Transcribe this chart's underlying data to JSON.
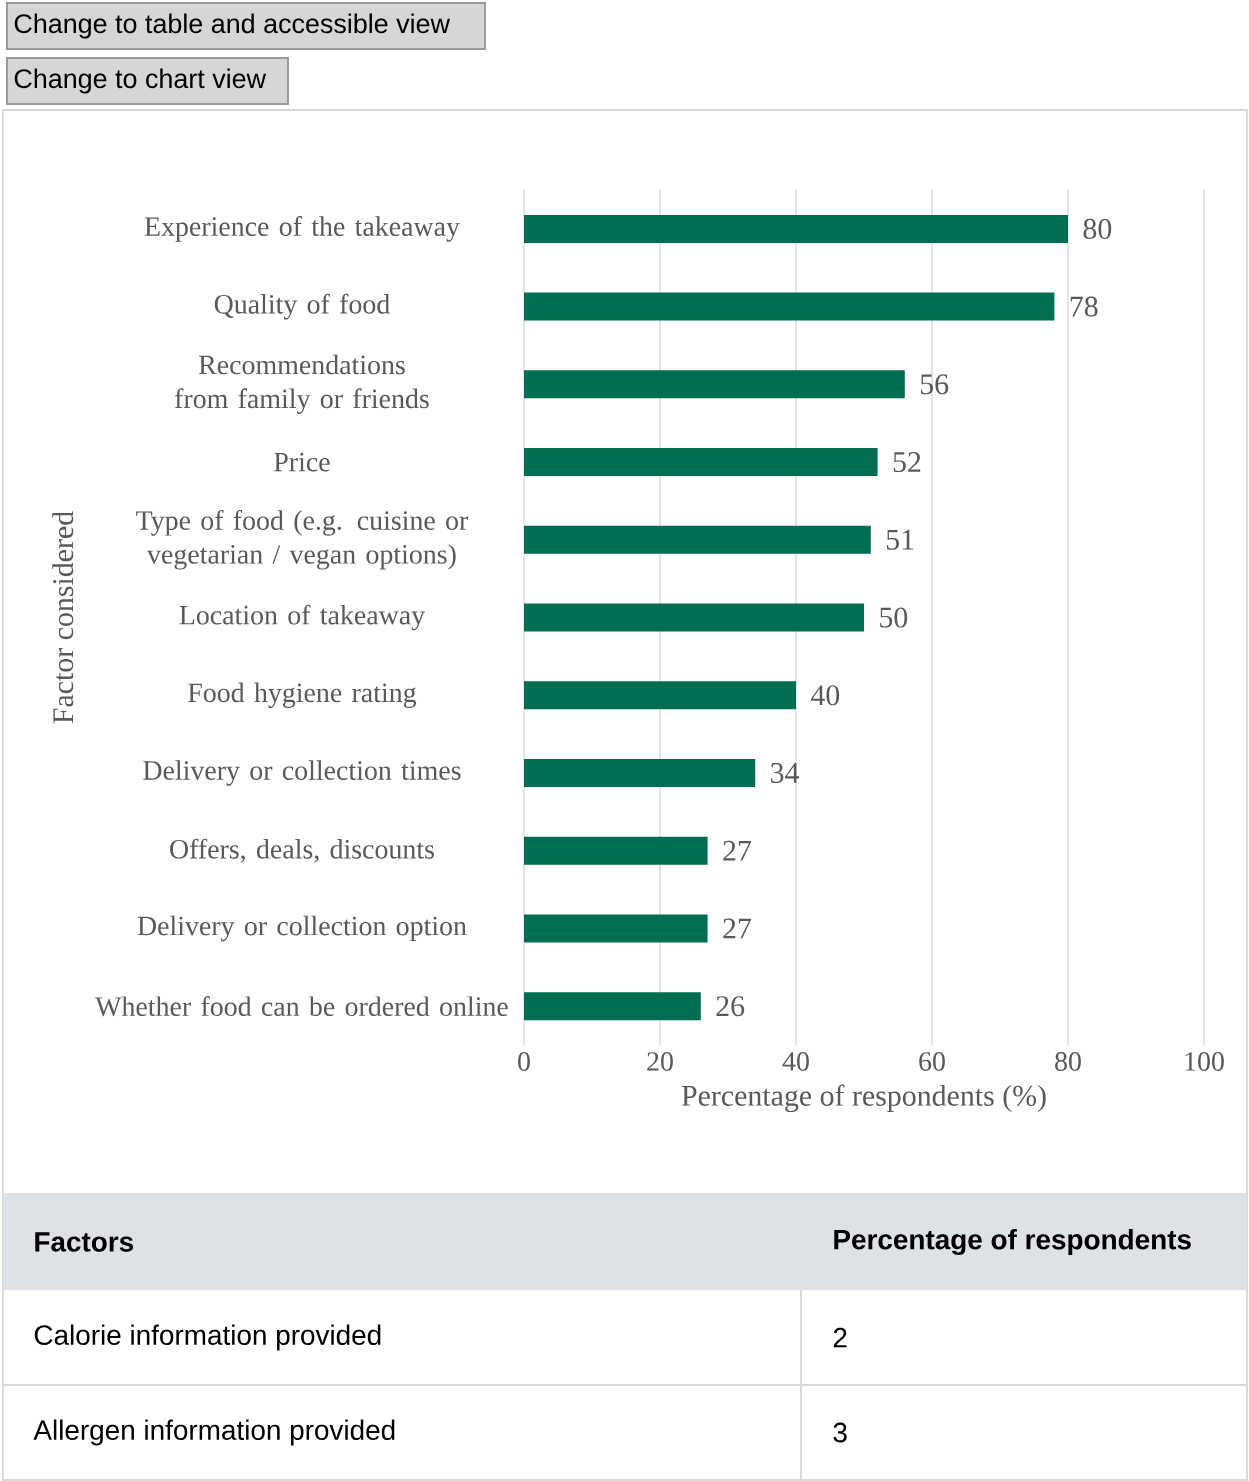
{
  "chart_data": [
    {
      "type": "bar",
      "orientation": "horizontal",
      "xlabel": "Percentage of respondents (%)",
      "ylabel": "Factor considered",
      "categories": [
        "Experience of the takeaway",
        "Quality of food",
        "Recommendations from family or friends",
        "Price",
        "Type of food (e.g. cuisine or vegetarian / vegan options)",
        "Location of takeaway",
        "Food hygiene rating",
        "Delivery or collection times",
        "Offers, deals, discounts",
        "Delivery or collection option",
        "Whether food can be ordered online"
      ],
      "values": [
        80,
        78,
        56,
        52,
        51,
        50,
        40,
        34,
        27,
        27,
        26
      ],
      "color": "#006e51",
      "xlim": [
        0,
        100
      ],
      "xticks": [
        0,
        20,
        40,
        60,
        80,
        100
      ],
      "grid": "x",
      "data_labels": true,
      "annotations": [
        "Change to table and accessible view",
        "Change to chart view"
      ]
    },
    {
      "type": "other",
      "xlabel": "Factors",
      "ylabel": "Percentage of respondents",
      "categories": [
        "Calorie information provided",
        "Allergen information provided"
      ],
      "values": [
        2,
        3
      ],
      "data_labels": true
    }
  ]
}
